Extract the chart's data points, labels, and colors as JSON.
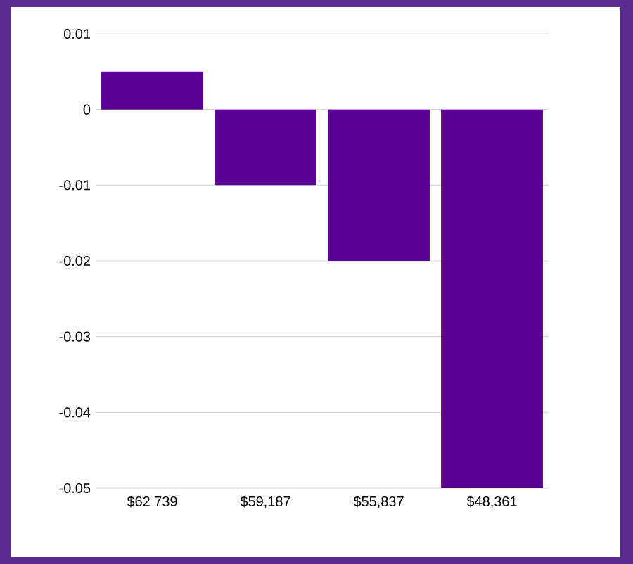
{
  "chart_data": {
    "type": "bar",
    "categories": [
      "$62 739",
      "$59,187",
      "$55,837",
      "$48,361"
    ],
    "values": [
      0.005,
      -0.01,
      -0.02,
      -0.05
    ],
    "color": "#5b0095",
    "ylim": [
      -0.05,
      0.01
    ],
    "yticks": [
      -0.05,
      -0.04,
      -0.03,
      -0.02,
      -0.01,
      0,
      0.01
    ],
    "grid": "y"
  }
}
